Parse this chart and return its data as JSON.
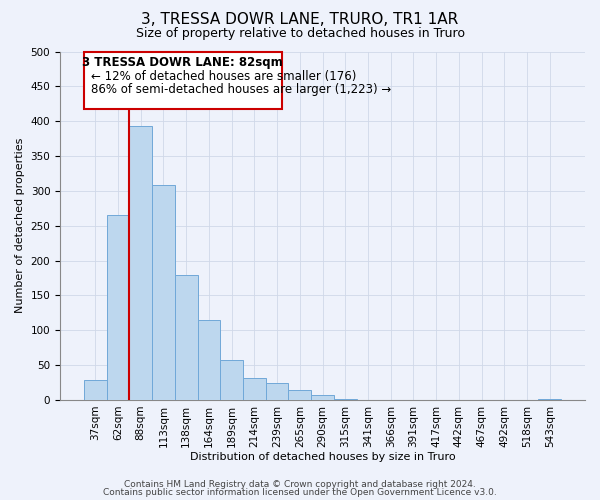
{
  "title": "3, TRESSA DOWR LANE, TRURO, TR1 1AR",
  "subtitle": "Size of property relative to detached houses in Truro",
  "xlabel": "Distribution of detached houses by size in Truro",
  "ylabel": "Number of detached properties",
  "bar_labels": [
    "37sqm",
    "62sqm",
    "88sqm",
    "113sqm",
    "138sqm",
    "164sqm",
    "189sqm",
    "214sqm",
    "239sqm",
    "265sqm",
    "290sqm",
    "315sqm",
    "341sqm",
    "366sqm",
    "391sqm",
    "417sqm",
    "442sqm",
    "467sqm",
    "492sqm",
    "518sqm",
    "543sqm"
  ],
  "bar_values": [
    29,
    265,
    393,
    309,
    180,
    115,
    58,
    32,
    25,
    15,
    7,
    1,
    0,
    0,
    0,
    0,
    0,
    0,
    0,
    0,
    2
  ],
  "bar_color": "#bdd7ee",
  "bar_edge_color": "#70a8d8",
  "ylim": [
    0,
    500
  ],
  "yticks": [
    0,
    50,
    100,
    150,
    200,
    250,
    300,
    350,
    400,
    450,
    500
  ],
  "property_line_label": "3 TRESSA DOWR LANE: 82sqm",
  "annotation_line1": "← 12% of detached houses are smaller (176)",
  "annotation_line2": "86% of semi-detached houses are larger (1,223) →",
  "annotation_box_color": "#ffffff",
  "annotation_border_color": "#cc0000",
  "vline_color": "#cc0000",
  "footer_line1": "Contains HM Land Registry data © Crown copyright and database right 2024.",
  "footer_line2": "Contains public sector information licensed under the Open Government Licence v3.0.",
  "background_color": "#eef2fb",
  "grid_color": "#d0d8e8",
  "title_fontsize": 11,
  "subtitle_fontsize": 9,
  "axis_label_fontsize": 8,
  "tick_fontsize": 7.5,
  "annotation_fontsize": 8.5,
  "footer_fontsize": 6.5
}
